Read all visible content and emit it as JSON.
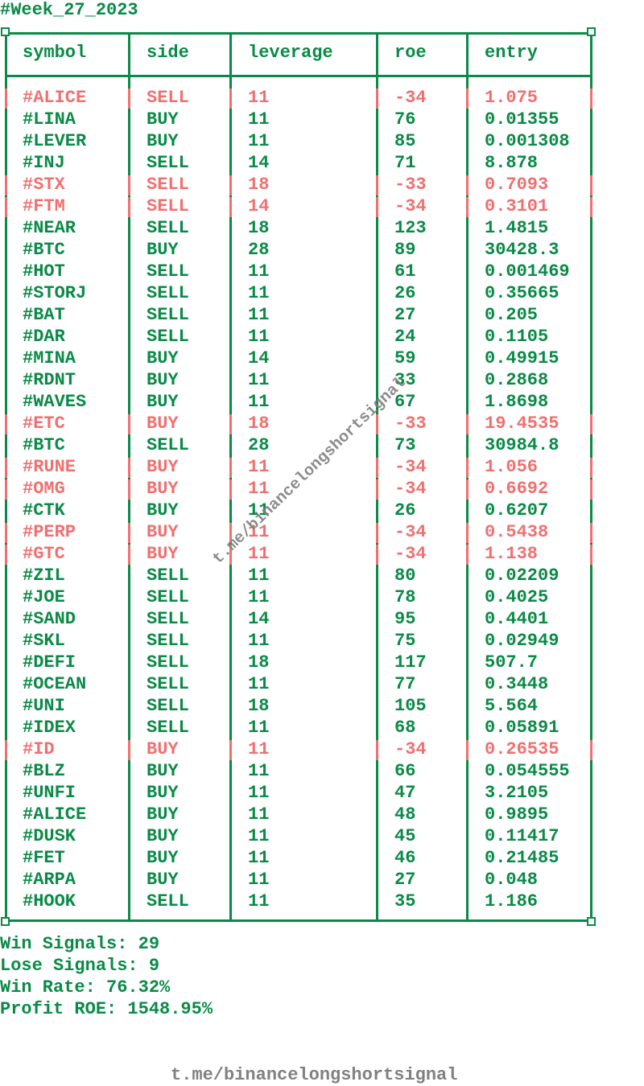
{
  "title": "#Week_27_2023",
  "headers": [
    "symbol",
    "side",
    "leverage",
    "roe",
    "entry"
  ],
  "rows": [
    {
      "symbol": "#ALICE",
      "side": "SELL",
      "leverage": "11",
      "roe": "-34",
      "entry": "1.075",
      "loss": true
    },
    {
      "symbol": "#LINA",
      "side": "BUY",
      "leverage": "11",
      "roe": "76",
      "entry": "0.01355",
      "loss": false
    },
    {
      "symbol": "#LEVER",
      "side": "BUY",
      "leverage": "11",
      "roe": "85",
      "entry": "0.001308",
      "loss": false
    },
    {
      "symbol": "#INJ",
      "side": "SELL",
      "leverage": "14",
      "roe": "71",
      "entry": "8.878",
      "loss": false
    },
    {
      "symbol": "#STX",
      "side": "SELL",
      "leverage": "18",
      "roe": "-33",
      "entry": "0.7093",
      "loss": true
    },
    {
      "symbol": "#FTM",
      "side": "SELL",
      "leverage": "14",
      "roe": "-34",
      "entry": "0.3101",
      "loss": true
    },
    {
      "symbol": "#NEAR",
      "side": "SELL",
      "leverage": "18",
      "roe": "123",
      "entry": "1.4815",
      "loss": false
    },
    {
      "symbol": "#BTC",
      "side": "BUY",
      "leverage": "28",
      "roe": "89",
      "entry": "30428.3",
      "loss": false
    },
    {
      "symbol": "#HOT",
      "side": "SELL",
      "leverage": "11",
      "roe": "61",
      "entry": "0.001469",
      "loss": false
    },
    {
      "symbol": "#STORJ",
      "side": "SELL",
      "leverage": "11",
      "roe": "26",
      "entry": "0.35665",
      "loss": false
    },
    {
      "symbol": "#BAT",
      "side": "SELL",
      "leverage": "11",
      "roe": "27",
      "entry": "0.205",
      "loss": false
    },
    {
      "symbol": "#DAR",
      "side": "SELL",
      "leverage": "11",
      "roe": "24",
      "entry": "0.1105",
      "loss": false
    },
    {
      "symbol": "#MINA",
      "side": "BUY",
      "leverage": "14",
      "roe": "59",
      "entry": "0.49915",
      "loss": false
    },
    {
      "symbol": "#RDNT",
      "side": "BUY",
      "leverage": "11",
      "roe": "33",
      "entry": "0.2868",
      "loss": false
    },
    {
      "symbol": "#WAVES",
      "side": "BUY",
      "leverage": "11",
      "roe": "67",
      "entry": "1.8698",
      "loss": false
    },
    {
      "symbol": "#ETC",
      "side": "BUY",
      "leverage": "18",
      "roe": "-33",
      "entry": "19.4535",
      "loss": true
    },
    {
      "symbol": "#BTC",
      "side": "SELL",
      "leverage": "28",
      "roe": "73",
      "entry": "30984.8",
      "loss": false
    },
    {
      "symbol": "#RUNE",
      "side": "BUY",
      "leverage": "11",
      "roe": "-34",
      "entry": "1.056",
      "loss": true
    },
    {
      "symbol": "#OMG",
      "side": "BUY",
      "leverage": "11",
      "roe": "-34",
      "entry": "0.6692",
      "loss": true
    },
    {
      "symbol": "#CTK",
      "side": "BUY",
      "leverage": "11",
      "roe": "26",
      "entry": "0.6207",
      "loss": false
    },
    {
      "symbol": "#PERP",
      "side": "BUY",
      "leverage": "11",
      "roe": "-34",
      "entry": "0.5438",
      "loss": true
    },
    {
      "symbol": "#GTC",
      "side": "BUY",
      "leverage": "11",
      "roe": "-34",
      "entry": "1.138",
      "loss": true
    },
    {
      "symbol": "#ZIL",
      "side": "SELL",
      "leverage": "11",
      "roe": "80",
      "entry": "0.02209",
      "loss": false
    },
    {
      "symbol": "#JOE",
      "side": "SELL",
      "leverage": "11",
      "roe": "78",
      "entry": "0.4025",
      "loss": false
    },
    {
      "symbol": "#SAND",
      "side": "SELL",
      "leverage": "14",
      "roe": "95",
      "entry": "0.4401",
      "loss": false
    },
    {
      "symbol": "#SKL",
      "side": "SELL",
      "leverage": "11",
      "roe": "75",
      "entry": "0.02949",
      "loss": false
    },
    {
      "symbol": "#DEFI",
      "side": "SELL",
      "leverage": "18",
      "roe": "117",
      "entry": "507.7",
      "loss": false
    },
    {
      "symbol": "#OCEAN",
      "side": "SELL",
      "leverage": "11",
      "roe": "77",
      "entry": "0.3448",
      "loss": false
    },
    {
      "symbol": "#UNI",
      "side": "SELL",
      "leverage": "18",
      "roe": "105",
      "entry": "5.564",
      "loss": false
    },
    {
      "symbol": "#IDEX",
      "side": "SELL",
      "leverage": "11",
      "roe": "68",
      "entry": "0.05891",
      "loss": false
    },
    {
      "symbol": "#ID",
      "side": "BUY",
      "leverage": "11",
      "roe": "-34",
      "entry": "0.26535",
      "loss": true
    },
    {
      "symbol": "#BLZ",
      "side": "BUY",
      "leverage": "11",
      "roe": "66",
      "entry": "0.054555",
      "loss": false
    },
    {
      "symbol": "#UNFI",
      "side": "BUY",
      "leverage": "11",
      "roe": "47",
      "entry": "3.2105",
      "loss": false
    },
    {
      "symbol": "#ALICE",
      "side": "BUY",
      "leverage": "11",
      "roe": "48",
      "entry": "0.9895",
      "loss": false
    },
    {
      "symbol": "#DUSK",
      "side": "BUY",
      "leverage": "11",
      "roe": "45",
      "entry": "0.11417",
      "loss": false
    },
    {
      "symbol": "#FET",
      "side": "BUY",
      "leverage": "11",
      "roe": "46",
      "entry": "0.21485",
      "loss": false
    },
    {
      "symbol": "#ARPA",
      "side": "BUY",
      "leverage": "11",
      "roe": "27",
      "entry": "0.048",
      "loss": false
    },
    {
      "symbol": "#HOOK",
      "side": "SELL",
      "leverage": "11",
      "roe": "35",
      "entry": "1.186",
      "loss": false
    }
  ],
  "stats": {
    "win": "Win Signals: 29",
    "lose": "Lose Signals: 9",
    "rate": "Win Rate: 76.32%",
    "profit": "Profit ROE: 1548.95%"
  },
  "watermark": "t.me/binancelongshortsignal",
  "footer": "t.me/binancelongshortsignal",
  "colors": {
    "win": "#0a8a47",
    "loss": "#f07070",
    "watermark": "#808080"
  }
}
